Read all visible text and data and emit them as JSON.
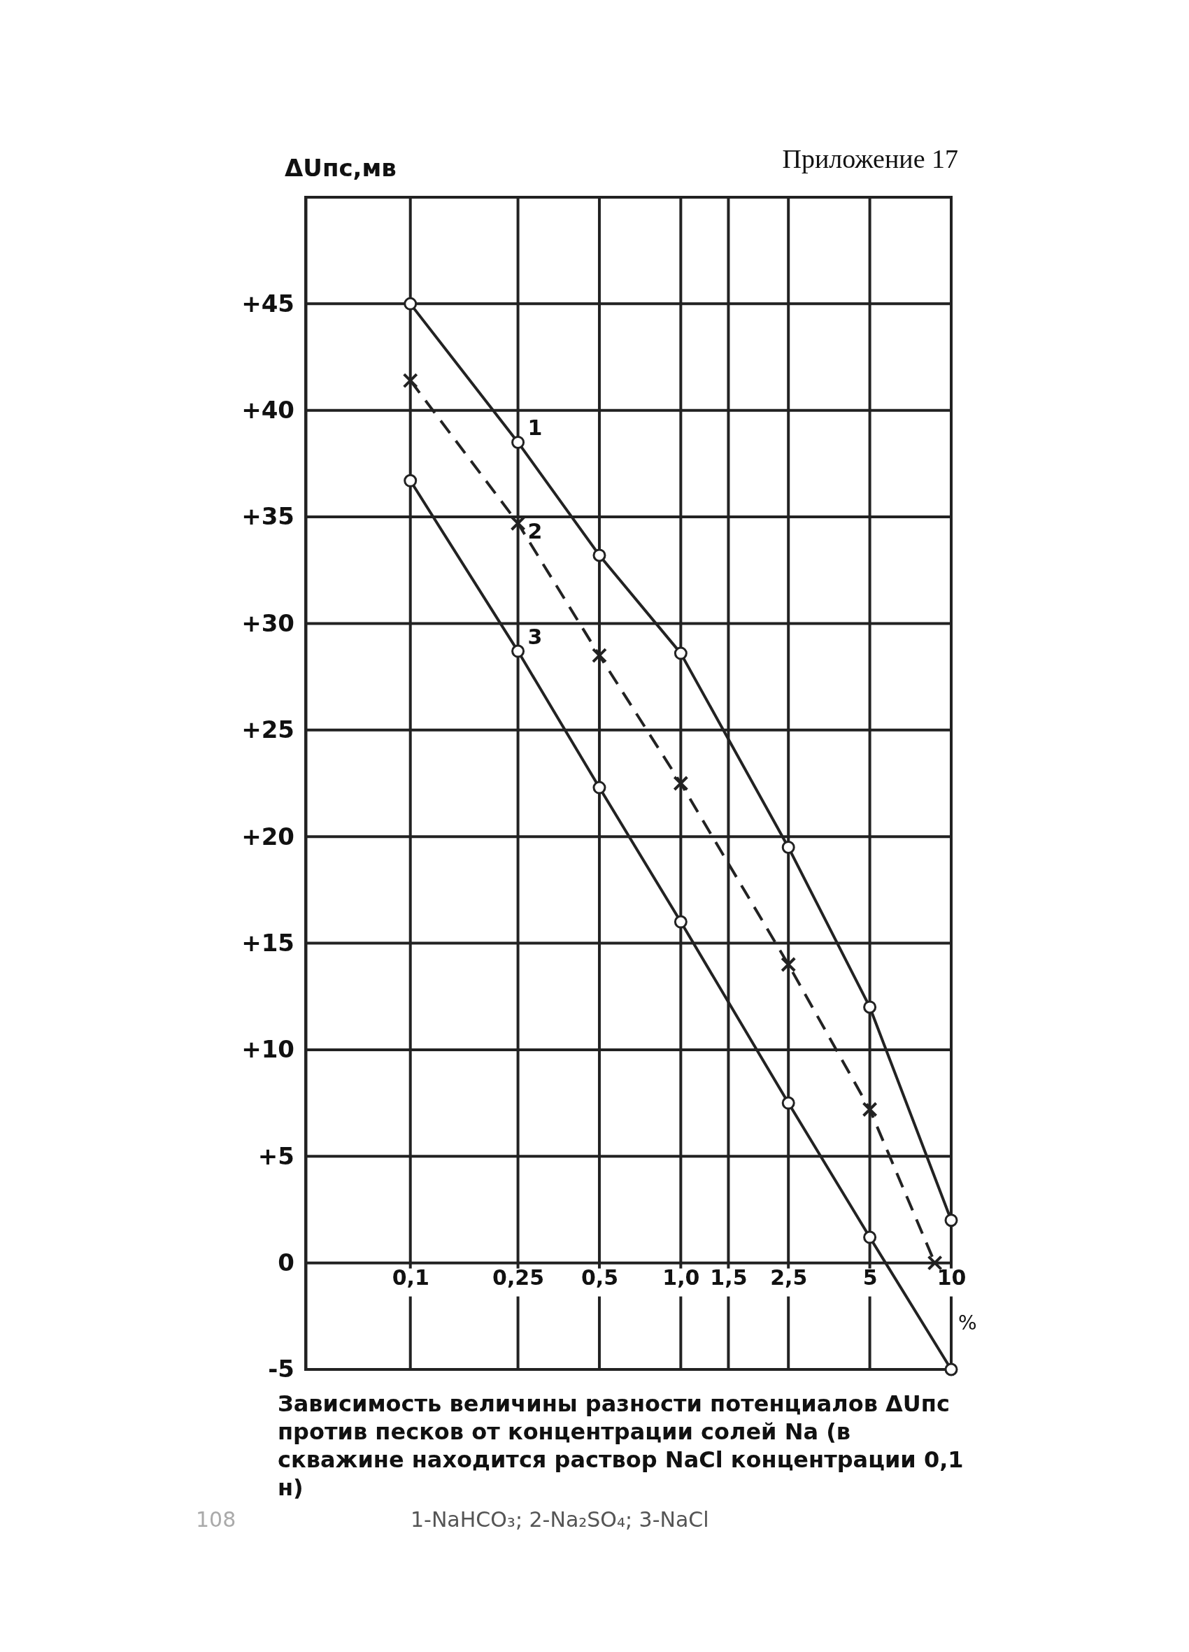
{
  "chart_data": {
    "type": "line",
    "title": "Зависимость величины разности потенциалов ΔUпс против песков от концентрации солей Na (в скважине находится раствор NaCl концентрации 0,1 н)",
    "subtitle": "1-NaHCO₃; 2-Na₂SO₄; 3-NaCl",
    "ylabel": "ΔUпс,мв",
    "xlabel": "%",
    "annotations": [
      "Приложение 17",
      "108"
    ],
    "log": "x",
    "grid": true,
    "xlim": [
      0.041,
      10
    ],
    "xticks": [
      {
        "value": 0.1,
        "label": "0,1"
      },
      {
        "value": 0.25,
        "label": "0,25"
      },
      {
        "value": 0.5,
        "label": "0,5"
      },
      {
        "value": 1,
        "label": "1,0"
      },
      {
        "value": 1.5,
        "label": "1,5"
      },
      {
        "value": 2.5,
        "label": "2,5"
      },
      5,
      10
    ],
    "ylim": [
      -5,
      50
    ],
    "yticks": [
      -5,
      0,
      {
        "value": 5,
        "label": "+5"
      },
      {
        "value": 10,
        "label": "+10"
      },
      {
        "value": 15,
        "label": "+15"
      },
      {
        "value": 20,
        "label": "+20"
      },
      {
        "value": 25,
        "label": "+25"
      },
      {
        "value": 30,
        "label": "+30"
      },
      {
        "value": 35,
        "label": "+35"
      },
      {
        "value": 40,
        "label": "+40"
      },
      {
        "value": 45,
        "label": "+45"
      },
      {
        "value": 50,
        "label": null
      }
    ],
    "series": [
      {
        "name": "1",
        "color": "#222222",
        "marker": "circle",
        "line_style": "solid",
        "x": [
          0.1,
          0.25,
          0.5,
          1,
          2.5,
          5,
          10
        ],
        "values": [
          45,
          38.5,
          33.2,
          28.6,
          19.5,
          12,
          2
        ]
      },
      {
        "name": "2",
        "color": "#222222",
        "marker": "cross",
        "line_style": "dashed",
        "x": [
          0.1,
          0.25,
          0.5,
          1,
          2.5,
          5,
          8.7
        ],
        "values": [
          41.4,
          34.7,
          28.5,
          22.5,
          14,
          7.2,
          0
        ]
      },
      {
        "name": "3",
        "color": "#222222",
        "marker": "circle",
        "line_style": "solid",
        "x": [
          0.1,
          0.25,
          0.5,
          1,
          2.5,
          5,
          10
        ],
        "values": [
          36.7,
          28.7,
          22.3,
          16,
          7.5,
          1.2,
          -5
        ]
      }
    ]
  }
}
